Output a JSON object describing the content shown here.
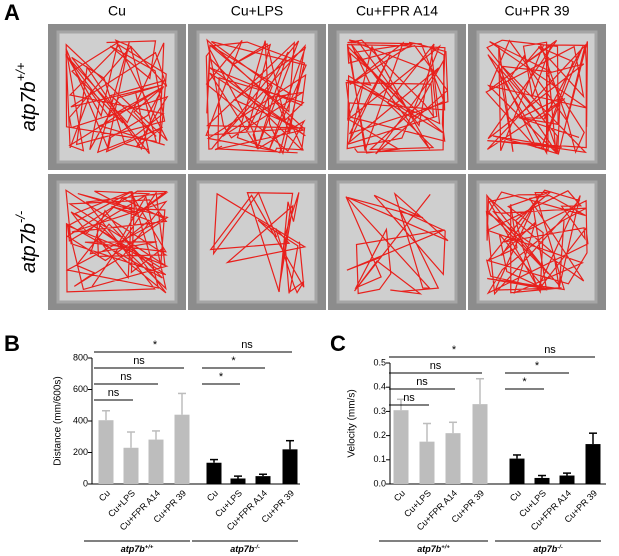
{
  "panel_a": {
    "label": "A",
    "columns": [
      "Cu",
      "Cu+LPS",
      "Cu+FPR A14",
      "Cu+PR 39"
    ],
    "rows": [
      {
        "text": "atp7b",
        "sup": "+/+"
      },
      {
        "text": "atp7b",
        "sup": "-/-"
      }
    ]
  },
  "chart_data": [
    {
      "type": "bar",
      "panel": "B",
      "ylabel": "Distance (mm/600s)",
      "categories": [
        "Cu",
        "Cu+LPS",
        "Cu+FPR A14",
        "Cu+PR 39",
        "Cu",
        "Cu+LPS",
        "Cu+FPR A14",
        "Cu+PR 39"
      ],
      "values": [
        405,
        230,
        282,
        440,
        135,
        35,
        50,
        220
      ],
      "errors": [
        60,
        100,
        55,
        135,
        20,
        15,
        12,
        55
      ],
      "colors": [
        "#bdbdbd",
        "#bdbdbd",
        "#bdbdbd",
        "#bdbdbd",
        "#000000",
        "#000000",
        "#000000",
        "#000000"
      ],
      "ylim": [
        0,
        800
      ],
      "yticks": [
        0,
        200,
        400,
        600,
        800
      ],
      "groups": [
        {
          "text": "atp7b",
          "sup": "+/+"
        },
        {
          "text": "atp7b",
          "sup": "-/-"
        }
      ],
      "comparisons": [
        {
          "label": "*",
          "between": [
            0,
            4
          ]
        },
        {
          "label": "ns",
          "between": [
            0,
            3
          ]
        },
        {
          "label": "ns",
          "between": [
            0,
            2
          ]
        },
        {
          "label": "ns",
          "between": [
            0,
            1
          ]
        },
        {
          "label": "ns",
          "between": [
            4,
            7
          ]
        },
        {
          "label": "*",
          "between": [
            4,
            6
          ]
        },
        {
          "label": "*",
          "between": [
            4,
            5
          ]
        }
      ]
    },
    {
      "type": "bar",
      "panel": "C",
      "ylabel": "Velocity (mm/s)",
      "categories": [
        "Cu",
        "Cu+LPS",
        "Cu+FPR A14",
        "Cu+PR 39",
        "Cu",
        "Cu+LPS",
        "Cu+FPR A14",
        "Cu+PR 39"
      ],
      "values": [
        0.305,
        0.175,
        0.21,
        0.33,
        0.105,
        0.025,
        0.035,
        0.165
      ],
      "errors": [
        0.045,
        0.075,
        0.045,
        0.105,
        0.015,
        0.01,
        0.01,
        0.045
      ],
      "colors": [
        "#bdbdbd",
        "#bdbdbd",
        "#bdbdbd",
        "#bdbdbd",
        "#000000",
        "#000000",
        "#000000",
        "#000000"
      ],
      "ylim": [
        0,
        0.5
      ],
      "yticks": [
        {
          "value": 0,
          "label": "0.0"
        },
        0.1,
        0.2,
        0.3,
        0.4,
        0.5
      ],
      "groups": [
        {
          "text": "atp7b",
          "sup": "+/+"
        },
        {
          "text": "atp7b",
          "sup": "-/-"
        }
      ],
      "comparisons": [
        {
          "label": "*",
          "between": [
            0,
            4
          ]
        },
        {
          "label": "ns",
          "between": [
            0,
            3
          ]
        },
        {
          "label": "ns",
          "between": [
            0,
            2
          ]
        },
        {
          "label": "ns",
          "between": [
            0,
            1
          ]
        },
        {
          "label": "ns",
          "between": [
            4,
            7
          ]
        },
        {
          "label": "*",
          "between": [
            4,
            6
          ]
        },
        {
          "label": "*",
          "between": [
            4,
            5
          ]
        }
      ]
    }
  ]
}
